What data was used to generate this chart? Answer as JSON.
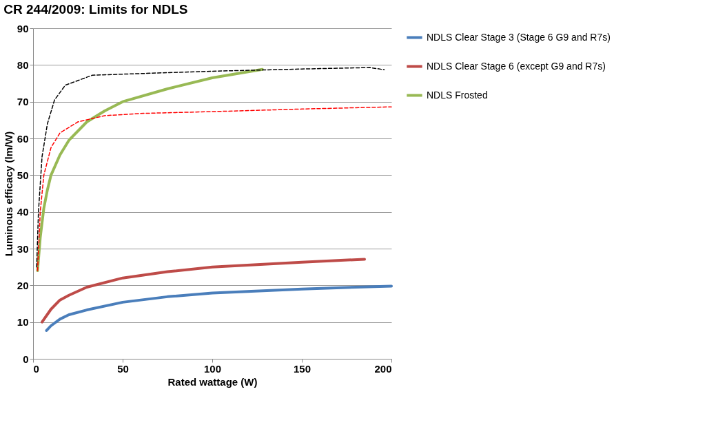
{
  "chart_data": {
    "type": "line",
    "title": "CR 244/2009: Limits for NDLS",
    "xlabel": "Rated wattage (W)",
    "ylabel": "Luminous efficacy (lm/W)",
    "xlim": [
      0,
      200
    ],
    "xticks": [
      0,
      50,
      100,
      150,
      200
    ],
    "ylim": [
      0,
      90
    ],
    "yticks": [
      0,
      10,
      20,
      30,
      40,
      50,
      60,
      70,
      80,
      90
    ],
    "grid": "y",
    "legend": "right",
    "line_style": "solid",
    "marker": "none",
    "series": [
      {
        "name": "NDLS Clear Stage 3 (Stage 6 G9 and R7s)",
        "color": "#4a7ebb",
        "x": [
          7.5,
          10,
          15,
          20,
          30,
          50,
          75,
          100,
          150,
          200
        ],
        "values": [
          7.7,
          9,
          10.8,
          12,
          13.3,
          15.4,
          16.9,
          17.9,
          19,
          19.8
        ]
      },
      {
        "name": "NDLS Clear Stage 6 (except G9 and R7s)",
        "color": "#be4b48",
        "x": [
          5,
          10,
          15,
          20,
          30,
          50,
          75,
          100,
          150,
          185
        ],
        "values": [
          10,
          13.5,
          16,
          17.3,
          19.5,
          22,
          23.7,
          25,
          26.3,
          27.1
        ]
      },
      {
        "name": "NDLS Frosted",
        "color": "#98b954",
        "x": [
          2.5,
          4,
          6,
          8,
          10,
          15,
          20,
          30,
          40,
          50,
          75,
          100,
          128
        ],
        "values": [
          24,
          33,
          41,
          46,
          50,
          55.5,
          59.5,
          64.5,
          67.5,
          70,
          73.5,
          76.5,
          78.8
        ]
      },
      {
        "color": "#000000",
        "line_style": "dashed",
        "x": [
          2,
          3,
          5,
          8,
          12,
          18,
          33,
          50,
          100,
          150,
          188,
          196
        ],
        "values": [
          25,
          40,
          55,
          64,
          70.5,
          74.5,
          77.2,
          77.5,
          78.3,
          78.9,
          79.3,
          78.7
        ]
      },
      {
        "color": "#ff0000",
        "line_style": "dashed",
        "x": [
          2.5,
          4,
          6,
          10,
          15,
          25,
          40,
          60,
          100,
          150,
          200
        ],
        "values": [
          24,
          40,
          50,
          57.5,
          61.5,
          64.5,
          66.2,
          66.8,
          67.3,
          68,
          68.6
        ]
      }
    ]
  }
}
